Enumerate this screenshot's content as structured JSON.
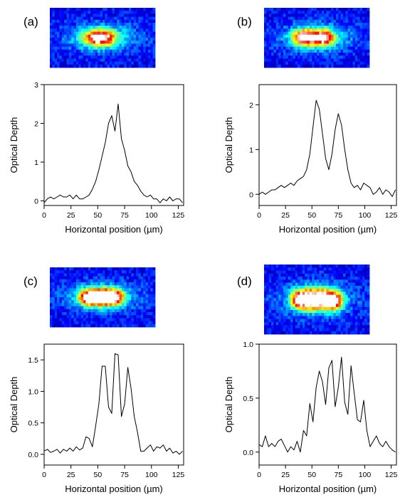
{
  "figure": {
    "colormap": [
      "#00007f",
      "#0000ff",
      "#007fff",
      "#00ffff",
      "#7fff7f",
      "#ffff00",
      "#ff7f00",
      "#ff0000",
      "#ffffff"
    ]
  },
  "chart_data": [
    {
      "type": "line",
      "panel_label": "(a)",
      "xlabel": "Horizontal position (µm)",
      "ylabel": "Optical Depth",
      "xlim": [
        0,
        130
      ],
      "ylim": [
        -0.12,
        3.0
      ],
      "xticks": [
        0,
        25,
        50,
        75,
        100,
        125
      ],
      "yticks": [
        0,
        1,
        2,
        3
      ],
      "ytick_labels": [
        "0",
        "1",
        "2",
        "3"
      ],
      "x": [
        0,
        3,
        6,
        9,
        12,
        15,
        18,
        21,
        24,
        27,
        30,
        33,
        36,
        39,
        42,
        45,
        48,
        51,
        54,
        57,
        60,
        63,
        66,
        69,
        72,
        75,
        78,
        81,
        84,
        87,
        90,
        93,
        96,
        99,
        102,
        105,
        108,
        111,
        114,
        117,
        120,
        123,
        126,
        129
      ],
      "y": [
        -0.05,
        0.05,
        0.1,
        0.05,
        0.1,
        0.15,
        0.1,
        0.1,
        0.15,
        0.05,
        0.15,
        0.05,
        0.05,
        0.1,
        0.15,
        0.3,
        0.5,
        0.8,
        1.15,
        1.5,
        2.0,
        2.2,
        1.8,
        2.5,
        1.6,
        1.3,
        0.9,
        0.75,
        0.5,
        0.4,
        0.25,
        0.15,
        0.1,
        0.15,
        0.05,
        0.05,
        -0.05,
        0.05,
        0.0,
        0.1,
        0.0,
        0.05,
        0.05,
        -0.05
      ],
      "image": {
        "cols": 44,
        "rows": 20,
        "clusters": [
          {
            "cx": 0.47,
            "cy": 0.5,
            "rx": 0.14,
            "ry": 0.13,
            "peak": 1.0
          }
        ]
      }
    },
    {
      "type": "line",
      "panel_label": "(b)",
      "xlabel": "Horizontal position (µm)",
      "ylabel": "Optical Depth",
      "xlim": [
        0,
        130
      ],
      "ylim": [
        -0.25,
        2.45
      ],
      "xticks": [
        0,
        25,
        50,
        75,
        100,
        125
      ],
      "yticks": [
        0,
        1,
        2
      ],
      "ytick_labels": [
        "0",
        "1",
        "2"
      ],
      "x": [
        0,
        3,
        6,
        9,
        12,
        15,
        18,
        21,
        24,
        27,
        30,
        33,
        36,
        39,
        42,
        45,
        48,
        51,
        54,
        57,
        60,
        63,
        66,
        69,
        72,
        75,
        78,
        81,
        84,
        87,
        90,
        93,
        96,
        99,
        102,
        105,
        108,
        111,
        114,
        117,
        120,
        123,
        126,
        129
      ],
      "y": [
        0.0,
        0.05,
        0.0,
        0.05,
        0.1,
        0.1,
        0.15,
        0.2,
        0.15,
        0.2,
        0.25,
        0.2,
        0.3,
        0.35,
        0.4,
        0.55,
        0.9,
        1.5,
        2.1,
        1.9,
        1.35,
        0.8,
        0.55,
        0.9,
        1.45,
        1.8,
        1.55,
        1.0,
        0.55,
        0.25,
        0.15,
        0.2,
        0.1,
        0.25,
        0.2,
        0.15,
        0.0,
        0.05,
        0.15,
        0.0,
        0.1,
        0.05,
        -0.05,
        0.1
      ],
      "image": {
        "cols": 44,
        "rows": 20,
        "clusters": [
          {
            "cx": 0.38,
            "cy": 0.5,
            "rx": 0.1,
            "ry": 0.13,
            "peak": 1.0
          },
          {
            "cx": 0.56,
            "cy": 0.5,
            "rx": 0.1,
            "ry": 0.13,
            "peak": 0.95
          }
        ]
      }
    },
    {
      "type": "line",
      "panel_label": "(c)",
      "xlabel": "Horizontal position (µm)",
      "ylabel": "Optical Depth",
      "xlim": [
        0,
        130
      ],
      "ylim": [
        -0.17,
        1.75
      ],
      "xticks": [
        0,
        25,
        50,
        75,
        100,
        125
      ],
      "yticks": [
        0,
        0.5,
        1.0,
        1.5
      ],
      "ytick_labels": [
        "0.0",
        "0.5",
        "1.0",
        "1.5"
      ],
      "x": [
        0,
        3,
        6,
        9,
        12,
        15,
        18,
        21,
        24,
        27,
        30,
        33,
        36,
        39,
        42,
        45,
        48,
        51,
        54,
        57,
        60,
        63,
        66,
        69,
        72,
        75,
        78,
        81,
        84,
        87,
        90,
        93,
        96,
        99,
        102,
        105,
        108,
        111,
        114,
        117,
        120,
        123,
        126,
        129
      ],
      "y": [
        0.05,
        0.08,
        0.03,
        0.05,
        0.08,
        0.02,
        0.08,
        0.05,
        0.1,
        0.05,
        0.12,
        0.07,
        0.1,
        0.28,
        0.25,
        0.12,
        0.45,
        0.8,
        1.4,
        1.4,
        0.75,
        0.65,
        1.6,
        1.58,
        0.6,
        0.8,
        1.38,
        1.05,
        0.6,
        0.35,
        0.05,
        0.05,
        0.1,
        0.15,
        0.05,
        0.12,
        0.1,
        0.15,
        0.05,
        0.1,
        0.02,
        0.05,
        0.0,
        0.05
      ],
      "image": {
        "cols": 44,
        "rows": 20,
        "clusters": [
          {
            "cx": 0.37,
            "cy": 0.5,
            "rx": 0.09,
            "ry": 0.13,
            "peak": 1.0
          },
          {
            "cx": 0.49,
            "cy": 0.5,
            "rx": 0.09,
            "ry": 0.13,
            "peak": 1.0
          },
          {
            "cx": 0.61,
            "cy": 0.5,
            "rx": 0.09,
            "ry": 0.13,
            "peak": 0.95
          }
        ]
      }
    },
    {
      "type": "line",
      "panel_label": "(d)",
      "xlabel": "Horizontal position (µm)",
      "ylabel": "Optical Depth",
      "xlim": [
        0,
        130
      ],
      "ylim": [
        -0.12,
        1.0
      ],
      "xticks": [
        0,
        25,
        50,
        75,
        100,
        125
      ],
      "yticks": [
        0,
        0.5,
        1.0
      ],
      "ytick_labels": [
        "0.0",
        "0.5",
        "1.0"
      ],
      "x": [
        0,
        3,
        6,
        9,
        12,
        15,
        18,
        21,
        24,
        27,
        30,
        33,
        36,
        39,
        42,
        45,
        48,
        51,
        54,
        57,
        60,
        63,
        66,
        69,
        72,
        75,
        78,
        81,
        84,
        87,
        90,
        93,
        96,
        99,
        102,
        105,
        108,
        111,
        114,
        117,
        120,
        123,
        126,
        129
      ],
      "y": [
        0.07,
        0.05,
        0.15,
        0.05,
        0.08,
        0.05,
        0.1,
        0.12,
        0.06,
        0.0,
        0.05,
        0.02,
        0.1,
        0.0,
        0.2,
        0.15,
        0.45,
        0.28,
        0.6,
        0.75,
        0.65,
        0.44,
        0.78,
        0.85,
        0.42,
        0.6,
        0.88,
        0.46,
        0.35,
        0.8,
        0.55,
        0.3,
        0.28,
        0.48,
        0.2,
        0.05,
        0.1,
        0.15,
        0.08,
        0.05,
        0.1,
        0.05,
        0.02,
        0.0
      ],
      "image": {
        "cols": 44,
        "rows": 20,
        "clusters": [
          {
            "cx": 0.34,
            "cy": 0.5,
            "rx": 0.08,
            "ry": 0.13,
            "peak": 1.0
          },
          {
            "cx": 0.45,
            "cy": 0.5,
            "rx": 0.08,
            "ry": 0.13,
            "peak": 1.0
          },
          {
            "cx": 0.56,
            "cy": 0.5,
            "rx": 0.08,
            "ry": 0.13,
            "peak": 0.98
          },
          {
            "cx": 0.67,
            "cy": 0.52,
            "rx": 0.08,
            "ry": 0.13,
            "peak": 0.9
          }
        ]
      }
    }
  ]
}
